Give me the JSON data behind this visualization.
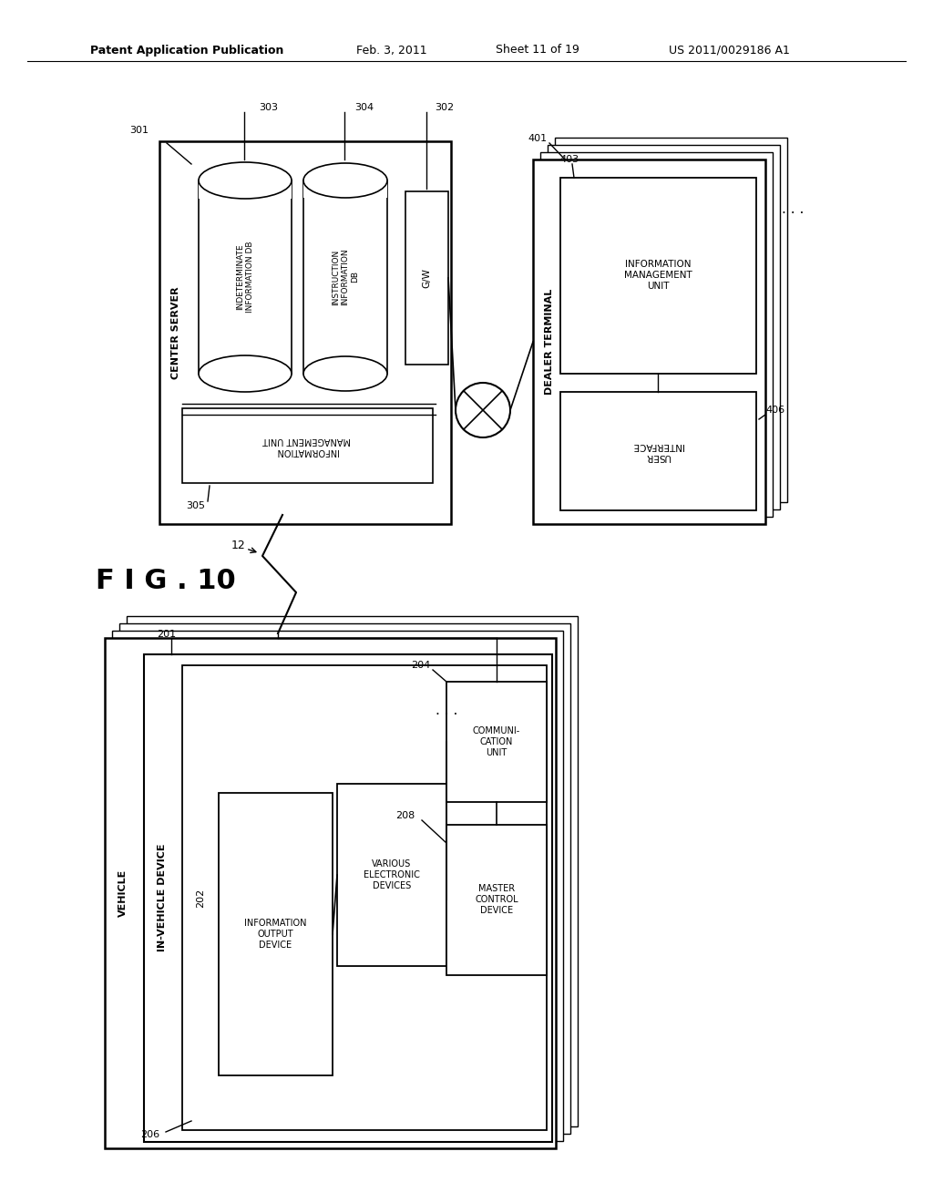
{
  "bg_color": "#ffffff",
  "header_text": "Patent Application Publication",
  "header_date": "Feb. 3, 2011",
  "header_sheet": "Sheet 11 of 19",
  "header_patent": "US 2011/0029186 A1",
  "fig_label": "F I G . 10",
  "fig_num": "12"
}
